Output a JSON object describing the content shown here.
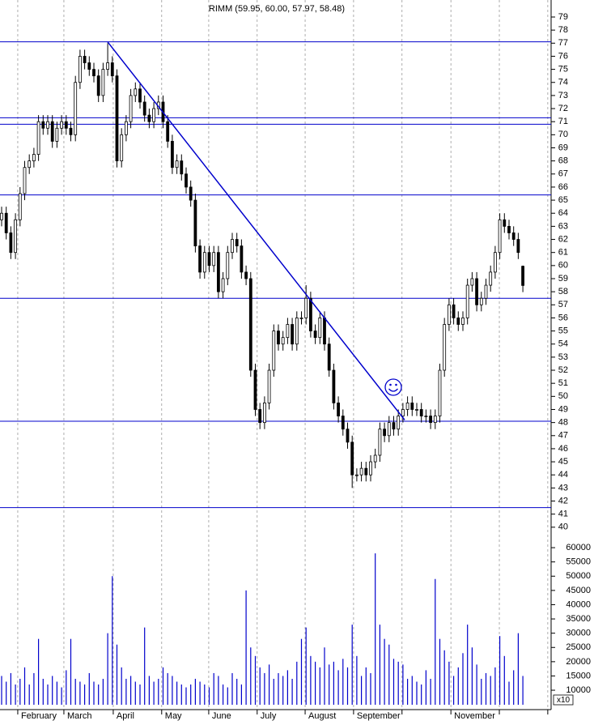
{
  "chart_data": {
    "type": "candlestick",
    "title": "RIMM (59.95, 60.00, 57.97, 58.48)",
    "xlim": [
      -0.35,
      119.3
    ],
    "xticks": [
      {
        "value": 3.5,
        "label": "February"
      },
      {
        "value": 13.5,
        "label": "March"
      },
      {
        "value": 24.2,
        "label": "April"
      },
      {
        "value": 34.7,
        "label": "May"
      },
      {
        "value": 44.9,
        "label": "June"
      },
      {
        "value": 55.4,
        "label": "July"
      },
      {
        "value": 65.8,
        "label": "August"
      },
      {
        "value": 76.3,
        "label": "September"
      },
      {
        "value": 86.8,
        "label": null
      },
      {
        "value": 97.4,
        "label": "November"
      },
      {
        "value": 107.9,
        "label": null
      },
      {
        "value": 118.4,
        "label": null
      }
    ],
    "ylim": [
      39.37,
      80.3
    ],
    "yticks": [
      40,
      41,
      42,
      43,
      44,
      45,
      46,
      47,
      48,
      49,
      50,
      51,
      52,
      53,
      54,
      55,
      56,
      57,
      58,
      59,
      60,
      61,
      62,
      63,
      64,
      65,
      66,
      67,
      68,
      69,
      70,
      71,
      72,
      73,
      74,
      75,
      76,
      77,
      78,
      79
    ],
    "grid": true,
    "up_color": "#ffffff",
    "down_color": "#000000",
    "line_color": "#0000cc",
    "open": [
      63.5,
      64,
      62.5,
      61,
      63.5,
      65.5,
      67.5,
      68,
      68.5,
      71,
      70.5,
      71,
      69.5,
      70.5,
      71,
      70.5,
      70,
      74,
      76,
      75.5,
      75,
      74.5,
      73,
      75,
      75.5,
      74.5,
      68,
      70,
      71,
      73,
      73.5,
      72.5,
      71.5,
      71,
      72,
      72.5,
      71,
      69.5,
      67.5,
      68,
      67,
      66,
      65,
      61.5,
      59.5,
      61,
      60,
      61,
      58,
      59,
      61,
      62,
      61.5,
      59.5,
      59,
      52,
      49,
      48,
      49.5,
      52,
      55,
      54,
      54.5,
      55.5,
      54,
      56,
      56,
      57.5,
      55,
      54.5,
      56,
      54,
      52,
      49.5,
      48.5,
      47.5,
      46.5,
      44,
      44,
      44.5,
      44,
      45,
      45.5,
      47.5,
      47,
      48,
      47.5,
      48.5,
      49,
      49.5,
      49,
      49,
      48.5,
      48.5,
      48,
      48.5,
      52,
      55.5,
      57,
      56,
      55.5,
      56,
      58.5,
      59,
      57,
      57.5,
      58.5,
      59.5,
      61,
      63.5,
      63,
      62.5,
      62,
      59.95
    ],
    "high": [
      64.5,
      64.5,
      63,
      64,
      66,
      68,
      68.5,
      69,
      71.5,
      71.5,
      71.5,
      71.5,
      71,
      71.5,
      71.5,
      71,
      74.5,
      76.5,
      76.5,
      76,
      75.5,
      75,
      75.5,
      77,
      76,
      75,
      70.5,
      71.5,
      73.5,
      74,
      74,
      73,
      72,
      72.5,
      73,
      73,
      71.5,
      70,
      68.5,
      68.5,
      67.5,
      66.5,
      65.5,
      62,
      61.5,
      61.5,
      61.5,
      61.5,
      59.5,
      61.5,
      62.5,
      62.5,
      62,
      60,
      59.5,
      52.5,
      49.5,
      50,
      52.5,
      55.5,
      55.5,
      55,
      56,
      56,
      56.5,
      56.5,
      58.5,
      58,
      55.5,
      56.5,
      56.5,
      54.5,
      52.5,
      50,
      49,
      48,
      47,
      44.5,
      45,
      45,
      45.5,
      46,
      48,
      48,
      48.5,
      48.5,
      49,
      49.5,
      50,
      50,
      49.5,
      49.5,
      49,
      49,
      49,
      52.5,
      56,
      57.5,
      57.5,
      56.5,
      56.5,
      59,
      59.5,
      59.5,
      58,
      59,
      60,
      61.5,
      64,
      64,
      63.5,
      63,
      62.5,
      60
    ],
    "low": [
      63,
      62,
      60.5,
      60.5,
      63,
      65,
      67,
      67.5,
      68,
      70,
      70,
      69,
      69,
      70,
      70,
      69.5,
      69.5,
      73.5,
      75,
      74.5,
      74,
      72.5,
      72.5,
      74.5,
      74,
      67.5,
      67.5,
      69.5,
      70.5,
      72.5,
      72,
      71,
      70.5,
      70.5,
      71.5,
      70.5,
      69,
      67,
      67,
      66.5,
      65.5,
      64.5,
      61,
      59,
      59,
      59.5,
      59.5,
      57.5,
      57.5,
      58.5,
      60.5,
      61,
      59,
      58.5,
      51.5,
      48.5,
      47.5,
      47.5,
      49,
      51.5,
      53.5,
      53.5,
      54,
      53.5,
      53.5,
      55.5,
      55.5,
      54.5,
      54,
      54,
      53.5,
      51.5,
      49,
      48,
      47,
      46,
      43,
      43.5,
      43.5,
      43.5,
      43.5,
      44.5,
      45,
      46.5,
      46.5,
      47,
      47,
      48,
      48.5,
      48.5,
      48.5,
      48,
      48,
      47.5,
      47.5,
      48,
      51.5,
      55,
      55.5,
      55,
      55,
      55.5,
      58,
      56.5,
      56.5,
      57,
      58,
      59,
      60.5,
      62.5,
      62,
      61.5,
      60.5,
      57.97
    ],
    "close": [
      64,
      62.5,
      61,
      63.5,
      65.5,
      67.5,
      68,
      68.5,
      71,
      70.5,
      71,
      69.5,
      70.5,
      71,
      70.5,
      70,
      74,
      76,
      75.5,
      75,
      74.5,
      73,
      75,
      75.5,
      74.5,
      68,
      70,
      71,
      73,
      73.5,
      72.5,
      71.5,
      71,
      72,
      72.5,
      71,
      69.5,
      67.5,
      68,
      67,
      66,
      65,
      61.5,
      59.5,
      61,
      60,
      61,
      58,
      59,
      61,
      62,
      61.5,
      59.5,
      59,
      52,
      49,
      48,
      49.5,
      52,
      55,
      54,
      54.5,
      55.5,
      54,
      56,
      56,
      57.5,
      55,
      54.5,
      56,
      54,
      52,
      49.5,
      48.5,
      47.5,
      46.5,
      44,
      44,
      44.5,
      44,
      45,
      45.5,
      47.5,
      47,
      48,
      47.5,
      48.5,
      49,
      49.5,
      49,
      49,
      48.5,
      48.5,
      48,
      48.5,
      52,
      55.5,
      57,
      56,
      55.5,
      56,
      58.5,
      59,
      57,
      57.5,
      58.5,
      59.5,
      61,
      63.5,
      63,
      62.5,
      62,
      61,
      58.48
    ],
    "hlines": [
      77.1,
      71.3,
      70.8,
      65.4,
      57.5,
      48.1,
      41.5
    ],
    "trendline": {
      "x": [
        22.98,
        87.37
      ],
      "y": [
        77.1,
        48.2
      ]
    },
    "volume": {
      "unit_label": "x10",
      "color": "#0000cc",
      "ylim": [
        4900,
        64000
      ],
      "yticks": [
        10000,
        15000,
        20000,
        25000,
        30000,
        35000,
        40000,
        45000,
        50000,
        55000,
        60000
      ],
      "values": [
        15000,
        13000,
        16000,
        12000,
        14000,
        18000,
        12000,
        16000,
        28000,
        14000,
        12000,
        15000,
        13000,
        11000,
        17000,
        28000,
        14000,
        13000,
        12000,
        16000,
        13000,
        12000,
        14000,
        30000,
        50000,
        26000,
        18000,
        14000,
        15000,
        13000,
        12000,
        32000,
        15000,
        13000,
        14000,
        18000,
        16000,
        15000,
        13000,
        12000,
        11000,
        12000,
        14000,
        13000,
        12000,
        11000,
        16000,
        15000,
        12000,
        11000,
        16000,
        14000,
        12000,
        45000,
        25000,
        22000,
        18000,
        16000,
        19000,
        14000,
        16000,
        15000,
        17000,
        14000,
        20000,
        28000,
        32000,
        22000,
        20000,
        18000,
        25000,
        19000,
        20000,
        17000,
        21000,
        18000,
        33000,
        22000,
        15000,
        18000,
        16000,
        58000,
        33000,
        28000,
        26000,
        21000,
        20000,
        19000,
        14000,
        15000,
        13000,
        12000,
        17000,
        14000,
        49000,
        28000,
        24000,
        20000,
        15000,
        18000,
        23000,
        33000,
        25000,
        19000,
        14000,
        16000,
        15000,
        18000,
        29000,
        22000,
        13000,
        17000,
        30000,
        15000
      ]
    }
  }
}
